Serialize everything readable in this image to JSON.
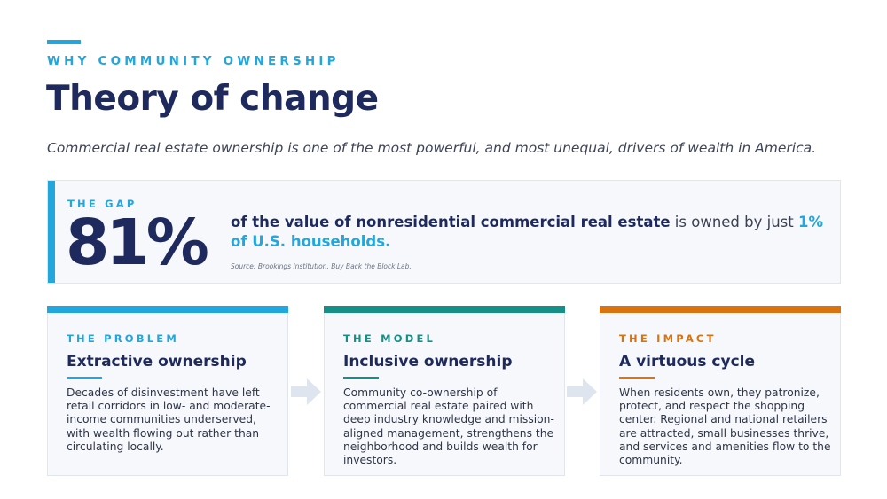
{
  "header": {
    "eyebrow": "WHY COMMUNITY OWNERSHIP",
    "title": "Theory of change",
    "subtitle": "Commercial real estate ownership is one of the most powerful, and most unequal, drivers of wealth in America."
  },
  "gap": {
    "label": "THE GAP",
    "stat": "81%",
    "statement_bold": "of the value of nonresidential commercial real estate",
    "statement_rest": " is owned by just ",
    "statement_highlight": "1% of U.S. households.",
    "source": "Source: Brookings Institution, Buy Back the Block Lab."
  },
  "cards": [
    {
      "label": "THE PROBLEM",
      "title": "Extractive ownership",
      "body": "Decades of disinvestment have left retail corridors in low- and moderate-income communities underserved, with wealth flowing out rather than circulating locally.",
      "color": "#21a6dd"
    },
    {
      "label": "THE MODEL",
      "title": "Inclusive ownership",
      "body": "Community co-ownership of commercial real estate paired with deep industry knowledge and mission-aligned management, strengthens the neighborhood and builds wealth for investors.",
      "color": "#168f86"
    },
    {
      "label": "THE IMPACT",
      "title": "A virtuous cycle",
      "body": "When residents own, they patronize, protect, and respect the shopping center. Regional and national retailers are attracted, small businesses thrive, and services and amenities flow to the community.",
      "color": "#d9730f"
    }
  ],
  "colors": {
    "navy": "#1e2a5e",
    "accent": "#21a6dd",
    "arrow": "#dfe5ee"
  }
}
